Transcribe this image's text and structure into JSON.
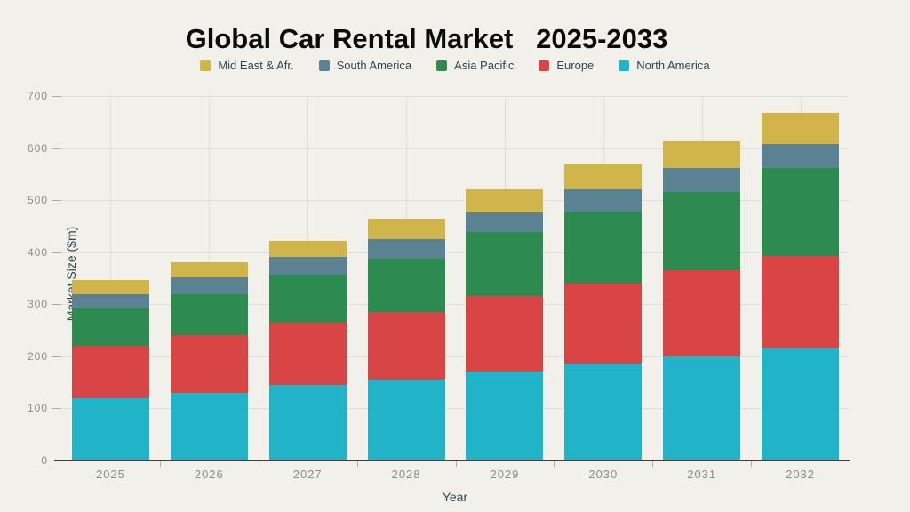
{
  "page": {
    "background_color": "#f1f0ea",
    "text_color_dark": "#2e4750",
    "tick_label_color": "#8d8c87",
    "gridline_color": "#deddd6",
    "axis_line_color": "#403f3c"
  },
  "chart_data": {
    "type": "bar",
    "stacked": true,
    "title": "Global Car Rental Market   2025-2033",
    "xlabel": "Year",
    "ylabel": "Market Size ($m)",
    "ylim": [
      0,
      700
    ],
    "ytick_step": 100,
    "yticks": [
      0,
      100,
      200,
      300,
      400,
      500,
      600,
      700
    ],
    "grid": true,
    "legend_position": "top",
    "categories": [
      "2025",
      "2026",
      "2027",
      "2028",
      "2029",
      "2030",
      "2031",
      "2032"
    ],
    "series": [
      {
        "name": "North America",
        "color": "#21b3c7",
        "values": [
          120,
          130,
          145,
          155,
          170,
          186,
          200,
          215
        ]
      },
      {
        "name": "Europe",
        "color": "#d94444",
        "values": [
          100,
          110,
          120,
          130,
          146,
          154,
          165,
          177
        ]
      },
      {
        "name": "Asia Pacific",
        "color": "#2e8b50",
        "values": [
          72,
          80,
          92,
          102,
          122,
          138,
          150,
          169
        ]
      },
      {
        "name": "South America",
        "color": "#5a8292",
        "values": [
          28,
          32,
          34,
          38,
          39,
          42,
          47,
          46
        ]
      },
      {
        "name": "Mid East & Afr.",
        "color": "#cfb54a",
        "values": [
          26,
          28,
          31,
          40,
          43,
          50,
          51,
          60
        ]
      }
    ],
    "legend": [
      "Mid East & Afr.",
      "South America",
      "Asia Pacific",
      "Europe",
      "North America"
    ]
  }
}
